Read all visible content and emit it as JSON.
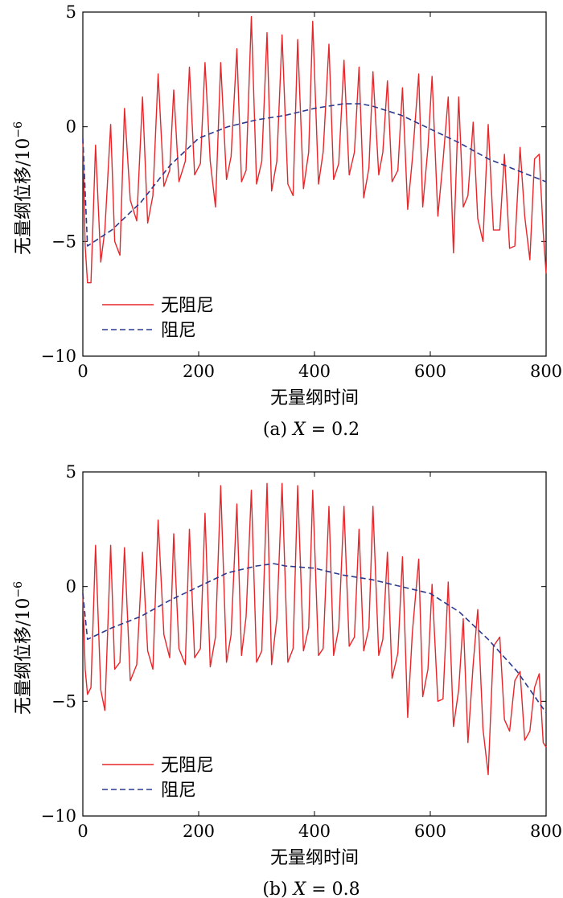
{
  "chart_data": [
    {
      "type": "line",
      "caption": "(a) X = 0.2",
      "caption_prefix": "(a) ",
      "caption_var": "X",
      "caption_suffix": " = 0.2",
      "xlabel": "无量纲时间",
      "ylabel": "无量纲位移/10",
      "ylabel_exponent": "−6",
      "xlim": [
        0,
        800
      ],
      "ylim": [
        -10,
        5
      ],
      "xticks": [
        0,
        200,
        400,
        600,
        800
      ],
      "yticks": [
        -10,
        -5,
        0,
        5
      ],
      "xtick_labels": [
        "0",
        "200",
        "400",
        "600",
        "800"
      ],
      "ytick_labels": [
        "−10",
        "−5",
        "0",
        "5"
      ],
      "legend_position": "lower-left",
      "series": [
        {
          "name": "无阻尼",
          "style": "solid",
          "color": "#e8262a",
          "x": [
            0,
            4,
            8,
            14,
            22,
            31,
            38,
            48,
            55,
            64,
            72,
            82,
            93,
            103,
            112,
            121,
            130,
            140,
            150,
            157,
            166,
            177,
            184,
            193,
            203,
            211,
            220,
            229,
            238,
            248,
            256,
            266,
            274,
            282,
            291,
            300,
            309,
            318,
            326,
            335,
            344,
            354,
            363,
            371,
            381,
            390,
            397,
            407,
            415,
            425,
            433,
            442,
            451,
            460,
            469,
            477,
            485,
            494,
            501,
            511,
            518,
            526,
            534,
            544,
            552,
            561,
            569,
            580,
            587,
            596,
            603,
            613,
            622,
            631,
            640,
            649,
            657,
            665,
            674,
            682,
            691,
            700,
            709,
            720,
            728,
            737,
            746,
            755,
            763,
            772,
            780,
            788,
            795,
            800
          ],
          "y": [
            -0.6,
            -5.2,
            -6.8,
            -6.8,
            -0.8,
            -5.9,
            -4.5,
            0.1,
            -5.0,
            -5.6,
            0.8,
            -3.2,
            -4.1,
            1.3,
            -4.2,
            -3.0,
            2.3,
            -2.6,
            -1.9,
            1.6,
            -2.4,
            -1.5,
            2.6,
            -2.1,
            -1.6,
            2.8,
            -1.5,
            -3.5,
            2.8,
            -2.3,
            -1.3,
            3.4,
            -2.4,
            -1.9,
            4.8,
            -2.5,
            -1.5,
            4.1,
            -2.8,
            -1.5,
            4.0,
            -2.5,
            -3.0,
            3.8,
            -2.7,
            -1.1,
            4.6,
            -2.5,
            -1.1,
            3.6,
            -2.3,
            -1.6,
            2.9,
            -2.1,
            -1.1,
            2.6,
            -3.1,
            -1.8,
            2.4,
            -2.1,
            -1.1,
            2.0,
            -2.4,
            -1.9,
            1.7,
            -3.6,
            -1.4,
            2.3,
            -3.5,
            -0.9,
            2.2,
            -3.9,
            -1.5,
            1.3,
            -5.5,
            1.3,
            -3.5,
            -3.0,
            0.2,
            -4.0,
            -5.0,
            0.1,
            -4.5,
            -4.5,
            -1.2,
            -5.3,
            -5.2,
            -0.9,
            -3.9,
            -5.8,
            -1.4,
            -1.2,
            -4.6,
            -6.4
          ]
        },
        {
          "name": "阻尼",
          "style": "dashed",
          "color": "#2b3a8f",
          "x": [
            0,
            8,
            50,
            100,
            150,
            200,
            250,
            300,
            350,
            400,
            450,
            480,
            500,
            550,
            600,
            650,
            700,
            750,
            800
          ],
          "y": [
            -0.5,
            -5.2,
            -4.5,
            -3.3,
            -1.7,
            -0.5,
            0.0,
            0.3,
            0.5,
            0.8,
            1.0,
            1.0,
            0.9,
            0.5,
            -0.1,
            -0.7,
            -1.4,
            -1.9,
            -2.4
          ]
        }
      ]
    },
    {
      "type": "line",
      "caption": "(b) X = 0.8",
      "caption_prefix": "(b) ",
      "caption_var": "X",
      "caption_suffix": " = 0.8",
      "xlabel": "无量纲时间",
      "ylabel": "无量纲位移/10",
      "ylabel_exponent": "−6",
      "xlim": [
        0,
        800
      ],
      "ylim": [
        -10,
        5
      ],
      "xticks": [
        0,
        200,
        400,
        600,
        800
      ],
      "yticks": [
        -10,
        -5,
        0,
        5
      ],
      "xtick_labels": [
        "0",
        "200",
        "400",
        "600",
        "800"
      ],
      "ytick_labels": [
        "−10",
        "−5",
        "0",
        "5"
      ],
      "legend_position": "lower-left",
      "series": [
        {
          "name": "无阻尼",
          "style": "solid",
          "color": "#e8262a",
          "x": [
            0,
            4,
            8,
            14,
            22,
            31,
            38,
            48,
            55,
            64,
            72,
            82,
            93,
            103,
            112,
            121,
            130,
            140,
            150,
            157,
            166,
            177,
            184,
            193,
            203,
            211,
            220,
            229,
            238,
            248,
            256,
            266,
            274,
            282,
            291,
            300,
            309,
            318,
            326,
            335,
            344,
            354,
            363,
            371,
            381,
            390,
            397,
            407,
            415,
            425,
            433,
            442,
            451,
            460,
            469,
            477,
            485,
            494,
            501,
            511,
            518,
            526,
            534,
            544,
            552,
            561,
            569,
            580,
            587,
            596,
            603,
            613,
            622,
            631,
            640,
            649,
            657,
            665,
            674,
            682,
            691,
            700,
            709,
            720,
            728,
            737,
            746,
            755,
            763,
            772,
            780,
            788,
            795,
            800
          ],
          "y": [
            -0.3,
            -3.6,
            -4.7,
            -4.4,
            1.8,
            -4.5,
            -5.4,
            1.8,
            -3.6,
            -3.3,
            1.7,
            -4.1,
            -3.4,
            1.5,
            -2.8,
            -3.6,
            2.9,
            -2.1,
            -3.1,
            2.3,
            -2.7,
            -3.4,
            2.5,
            -3.1,
            -2.7,
            3.2,
            -3.5,
            -2.2,
            4.4,
            -3.3,
            -2.1,
            3.6,
            -3.0,
            -1.3,
            4.2,
            -3.3,
            -2.8,
            4.5,
            -3.4,
            -1.4,
            4.5,
            -3.3,
            -2.7,
            4.4,
            -2.8,
            -1.8,
            4.2,
            -3.0,
            -2.7,
            3.5,
            -3.0,
            -1.8,
            3.5,
            -2.6,
            -2.2,
            2.5,
            -2.8,
            -1.8,
            3.5,
            -3.0,
            -2.3,
            1.5,
            -4.0,
            -2.9,
            1.3,
            -5.7,
            -2.0,
            1.2,
            -4.8,
            -3.6,
            0.1,
            -5.0,
            -4.9,
            0.2,
            -6.1,
            -4.5,
            -1.4,
            -6.8,
            -3.4,
            -1.0,
            -6.2,
            -8.2,
            -2.6,
            -2.2,
            -5.8,
            -6.3,
            -4.1,
            -3.7,
            -6.7,
            -6.3,
            -4.4,
            -3.8,
            -6.8,
            -7.0
          ]
        },
        {
          "name": "阻尼",
          "style": "dashed",
          "color": "#2b3a8f",
          "x": [
            0,
            8,
            50,
            100,
            150,
            200,
            250,
            300,
            330,
            350,
            400,
            450,
            500,
            550,
            600,
            650,
            700,
            750,
            800
          ],
          "y": [
            -0.3,
            -2.3,
            -1.8,
            -1.3,
            -0.6,
            0.0,
            0.6,
            0.9,
            1.0,
            0.9,
            0.8,
            0.5,
            0.3,
            0.0,
            -0.3,
            -1.1,
            -2.3,
            -3.7,
            -5.5
          ]
        }
      ]
    }
  ]
}
